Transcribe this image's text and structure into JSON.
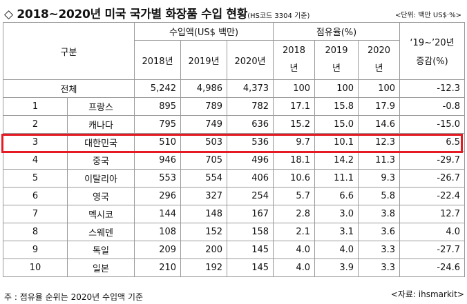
{
  "title": {
    "main": "◇ 2018~2020년 미국 국가별 화장품 수입 현황",
    "sub": "(HS코드 3304 기준)",
    "unit": "<단위: 백만 US$·%>"
  },
  "headers": {
    "category": "구분",
    "import_group": "수입액(US$ 백만)",
    "share_group": "점유율(%)",
    "change_top": "‘19~’20년",
    "change_bottom": "증감(%)",
    "years_import": [
      "2018년",
      "2019년",
      "2020년"
    ],
    "years_share": [
      {
        "top": "2018",
        "bottom": "년"
      },
      {
        "top": "2019",
        "bottom": "년"
      },
      {
        "top": "2020",
        "bottom": "년"
      }
    ]
  },
  "total": {
    "label": "전체",
    "import": [
      "5,242",
      "4,986",
      "4,373"
    ],
    "share": [
      "100",
      "100",
      "100"
    ],
    "change": "-12.3"
  },
  "rows": [
    {
      "rank": "1",
      "country": "프랑스",
      "import": [
        "895",
        "789",
        "782"
      ],
      "share": [
        "17.1",
        "15.8",
        "17.9"
      ],
      "change": "-0.8"
    },
    {
      "rank": "2",
      "country": "캐나다",
      "import": [
        "795",
        "749",
        "636"
      ],
      "share": [
        "15.2",
        "15.0",
        "14.6"
      ],
      "change": "-15.0"
    },
    {
      "rank": "3",
      "country": "대한민국",
      "import": [
        "510",
        "503",
        "536"
      ],
      "share": [
        "9.7",
        "10.1",
        "12.3"
      ],
      "change": "6.5"
    },
    {
      "rank": "4",
      "country": "중국",
      "import": [
        "946",
        "705",
        "496"
      ],
      "share": [
        "18.1",
        "14.2",
        "11.3"
      ],
      "change": "-29.7"
    },
    {
      "rank": "5",
      "country": "이탈리아",
      "import": [
        "553",
        "554",
        "406"
      ],
      "share": [
        "10.6",
        "11.1",
        "9.3"
      ],
      "change": "-26.7"
    },
    {
      "rank": "6",
      "country": "영국",
      "import": [
        "296",
        "327",
        "254"
      ],
      "share": [
        "5.7",
        "6.6",
        "5.8"
      ],
      "change": "-22.4"
    },
    {
      "rank": "7",
      "country": "멕시코",
      "import": [
        "144",
        "148",
        "167"
      ],
      "share": [
        "2.8",
        "3.0",
        "3.8"
      ],
      "change": "12.7"
    },
    {
      "rank": "8",
      "country": "스웨덴",
      "import": [
        "108",
        "152",
        "158"
      ],
      "share": [
        "2.1",
        "3.1",
        "3.6"
      ],
      "change": "4.0"
    },
    {
      "rank": "9",
      "country": "독일",
      "import": [
        "209",
        "200",
        "145"
      ],
      "share": [
        "4.0",
        "4.0",
        "3.3"
      ],
      "change": "-27.7"
    },
    {
      "rank": "10",
      "country": "일본",
      "import": [
        "210",
        "192",
        "145"
      ],
      "share": [
        "4.0",
        "3.9",
        "3.3"
      ],
      "change": "-24.6"
    }
  ],
  "highlight_color": "#e51b24",
  "footnote": "주 : 점유율 순위는 2020년 수입액 기준",
  "source": "<자료: ihsmarkit>"
}
